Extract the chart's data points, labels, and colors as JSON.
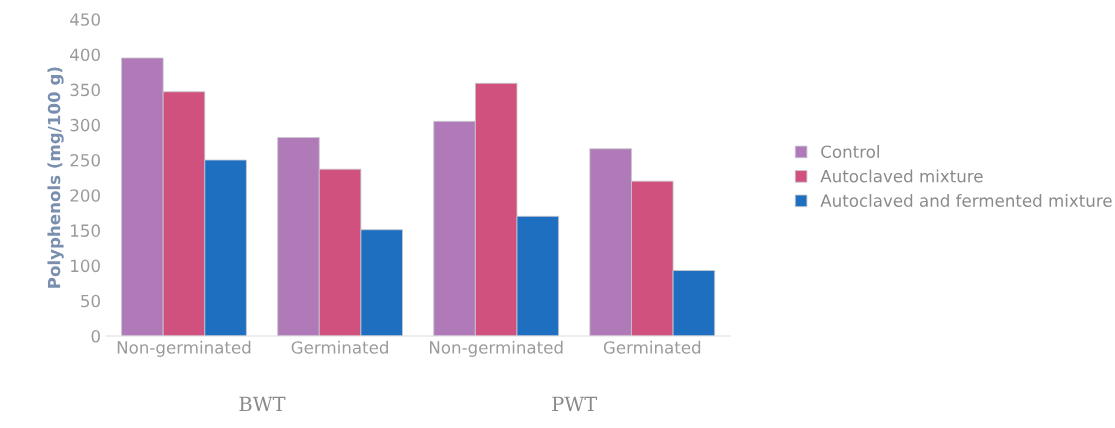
{
  "chart_data": {
    "type": "bar",
    "ylabel": "Polyphenols (mg/100 g)",
    "categories": [
      "Non-germinated",
      "Germinated",
      "Non-germinated",
      "Germinated"
    ],
    "series": [
      {
        "name": "Control",
        "color": "#b07ab8",
        "values": [
          395,
          282,
          305,
          266
        ]
      },
      {
        "name": "Autoclaved mixture",
        "color": "#d0507e",
        "values": [
          347,
          237,
          359,
          220
        ]
      },
      {
        "name": "Autoclaved and fermented mixture",
        "color": "#1f6fc0",
        "values": [
          250,
          151,
          170,
          93
        ]
      }
    ],
    "ylim": [
      0,
      450
    ],
    "yticks": [
      0,
      50,
      100,
      150,
      200,
      250,
      300,
      350,
      400,
      450
    ],
    "annotations": [
      "BWT",
      "PWT"
    ],
    "grid": false,
    "legend": "right"
  }
}
